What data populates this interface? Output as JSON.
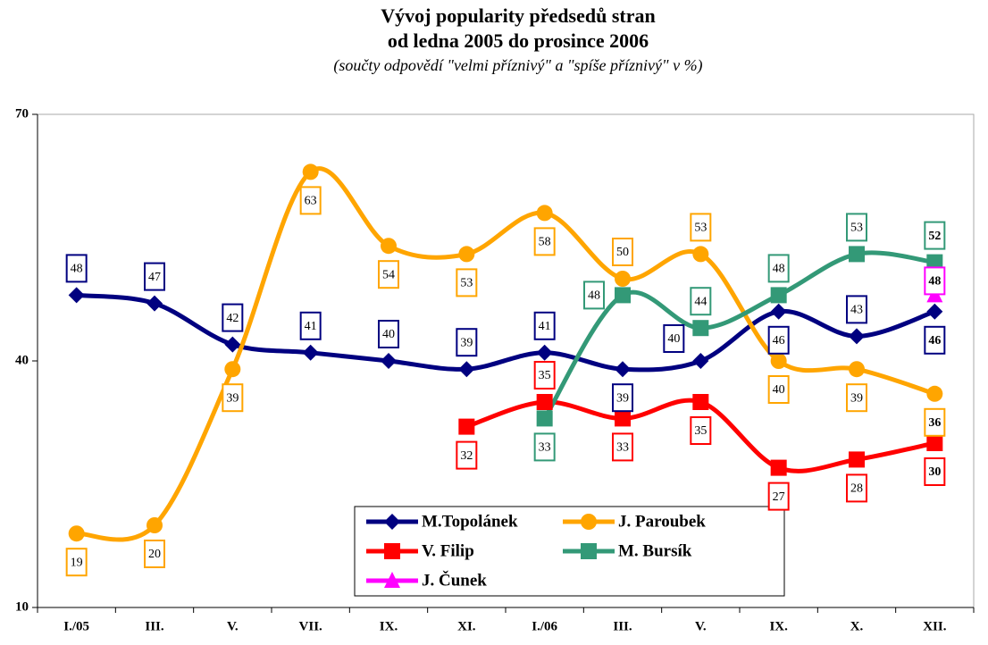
{
  "chart_data": {
    "type": "line",
    "title": "Vývoj popularity předsedů stran",
    "subtitle": "od ledna 2005 do prosince 2006",
    "note": "(součty odpovědí \"velmi příznivý\" a \"spíše příznivý\" v %)",
    "categories": [
      "I./05",
      "III.",
      "V.",
      "VII.",
      "IX.",
      "XI.",
      "I./06",
      "III.",
      "V.",
      "IX.",
      "X.",
      "XII."
    ],
    "series": [
      {
        "name": "M.Topolánek",
        "color": "#000080",
        "marker": "diamond",
        "values": [
          48,
          47,
          42,
          41,
          40,
          39,
          41,
          39,
          40,
          46,
          43,
          46
        ]
      },
      {
        "name": "J. Paroubek",
        "color": "#FFA500",
        "marker": "circle",
        "values": [
          19,
          20,
          39,
          63,
          54,
          53,
          58,
          50,
          53,
          40,
          39,
          36
        ]
      },
      {
        "name": "V. Filip",
        "color": "#FF0000",
        "marker": "square",
        "values": [
          null,
          null,
          null,
          null,
          null,
          32,
          35,
          33,
          35,
          27,
          28,
          30
        ]
      },
      {
        "name": "M. Bursík",
        "color": "#339977",
        "marker": "square",
        "values": [
          null,
          null,
          null,
          null,
          null,
          null,
          33,
          48,
          44,
          48,
          53,
          52
        ]
      },
      {
        "name": "J. Čunek",
        "color": "#FF00FF",
        "marker": "triangle",
        "values": [
          null,
          null,
          null,
          null,
          null,
          null,
          null,
          null,
          null,
          null,
          null,
          48
        ]
      }
    ],
    "ylim": [
      10,
      70
    ],
    "yticks": [
      10,
      40,
      70
    ],
    "grid": false
  }
}
